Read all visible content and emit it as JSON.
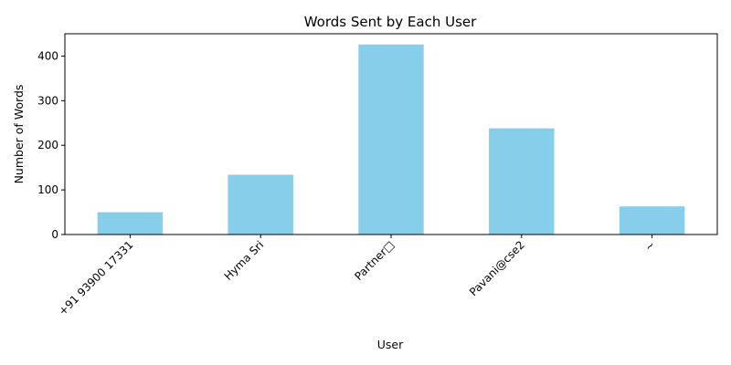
{
  "chart_data": {
    "type": "bar",
    "title": "Words Sent by Each User",
    "xlabel": "User",
    "ylabel": "Number of Words",
    "categories": [
      "+91 93900 17331",
      "Hyma Sri",
      "Partner□",
      "Pavani@cse2",
      "~"
    ],
    "values": [
      50,
      134,
      426,
      238,
      63
    ],
    "ylim": [
      0,
      450
    ],
    "yticks": [
      0,
      100,
      200,
      300,
      400
    ],
    "bar_color": "#87CEEB",
    "grid": false,
    "legend": "none"
  }
}
